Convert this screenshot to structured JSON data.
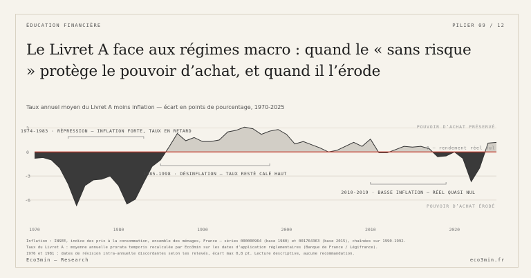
{
  "header": {
    "kicker": "ÉDUCATION FINANCIÈRE",
    "pillar": "PILIER 09 / 12",
    "title": "Le Livret A face aux régimes macro : quand le « sans risque » protège le pouvoir d’achat, et quand il l’érode",
    "subtitle": "Taux annuel moyen du Livret A moins inflation — écart en points de pourcentage, 1970-2025"
  },
  "colors": {
    "background": "#f6f3ec",
    "positive_fill": "#d2cec6",
    "negative_fill": "#3a3a3a",
    "zero_line": "#c0392b",
    "grid": "#d8d2c6"
  },
  "chart_data": {
    "type": "area",
    "x": [
      1970,
      1971,
      1972,
      1973,
      1974,
      1975,
      1976,
      1977,
      1978,
      1979,
      1980,
      1981,
      1982,
      1983,
      1984,
      1985,
      1986,
      1987,
      1988,
      1989,
      1990,
      1991,
      1992,
      1993,
      1994,
      1995,
      1996,
      1997,
      1998,
      1999,
      2000,
      2001,
      2002,
      2003,
      2004,
      2005,
      2006,
      2007,
      2008,
      2009,
      2010,
      2011,
      2012,
      2013,
      2014,
      2015,
      2016,
      2017,
      2018,
      2019,
      2020,
      2021,
      2022,
      2023,
      2024,
      2025
    ],
    "y": [
      -0.8,
      -0.7,
      -1.0,
      -2.0,
      -4.0,
      -6.7,
      -4.2,
      -3.5,
      -3.4,
      -3.0,
      -4.2,
      -6.5,
      -5.9,
      -3.8,
      -1.8,
      -1.0,
      0.6,
      2.3,
      1.4,
      1.8,
      1.3,
      1.3,
      1.5,
      2.5,
      2.7,
      3.1,
      2.9,
      2.2,
      2.6,
      2.8,
      2.2,
      1.0,
      1.3,
      0.9,
      0.5,
      0.0,
      0.2,
      0.7,
      1.2,
      0.7,
      1.6,
      -0.1,
      -0.1,
      0.3,
      0.7,
      0.6,
      0.7,
      0.4,
      -0.6,
      -0.5,
      0.0,
      -0.8,
      -3.7,
      -2.0,
      1.1,
      1.2
    ],
    "xticks": [
      "1970",
      "1980",
      "1990",
      "2000",
      "2010",
      "2020"
    ],
    "yticks": [
      "3",
      "0",
      "-3",
      "-6"
    ],
    "ylim": [
      -8.5,
      4.5
    ],
    "xlim": [
      1970,
      2025
    ],
    "grid": true,
    "zero_label": "0 — rendement réel nul",
    "zone_labels": {
      "positive": "POUVOIR D’ACHAT PRÉSERVÉ",
      "negative": "POUVOIR D’ACHAT ÉRODÉ"
    },
    "annotations": [
      {
        "label": "1974-1983 · RÉPRESSION — INFLATION FORTE, TAUX EN RETARD",
        "start": 1974,
        "end": 1983
      },
      {
        "label": "1985-1998 · DÉSINFLATION — TAUX RESTÉ CALÉ HAUT",
        "start": 1985,
        "end": 1998
      },
      {
        "label": "2010-2019 · BASSE INFLATION — RÉEL QUASI NUL",
        "start": 2010,
        "end": 2019
      }
    ]
  },
  "footer": {
    "notes": [
      "Inflation : INSEE, indice des prix à la consommation, ensemble des ménages, France — séries 000000964 (base 1980) et 001764363 (base 2015), chaînées sur 1990-1992.",
      "Taux du Livret A : moyenne annuelle prorata temporis recalculée par Eco3min sur les dates d’application réglementaires (Banque de France / Légifrance).",
      "1976 et 1981 : dates de révision intra-annuelle discordantes selon les relevés, écart max 0,8 pt. Lecture descriptive, aucune recommandation."
    ],
    "brand_left": "Eco3min — Research",
    "brand_right": "eco3min.fr"
  }
}
